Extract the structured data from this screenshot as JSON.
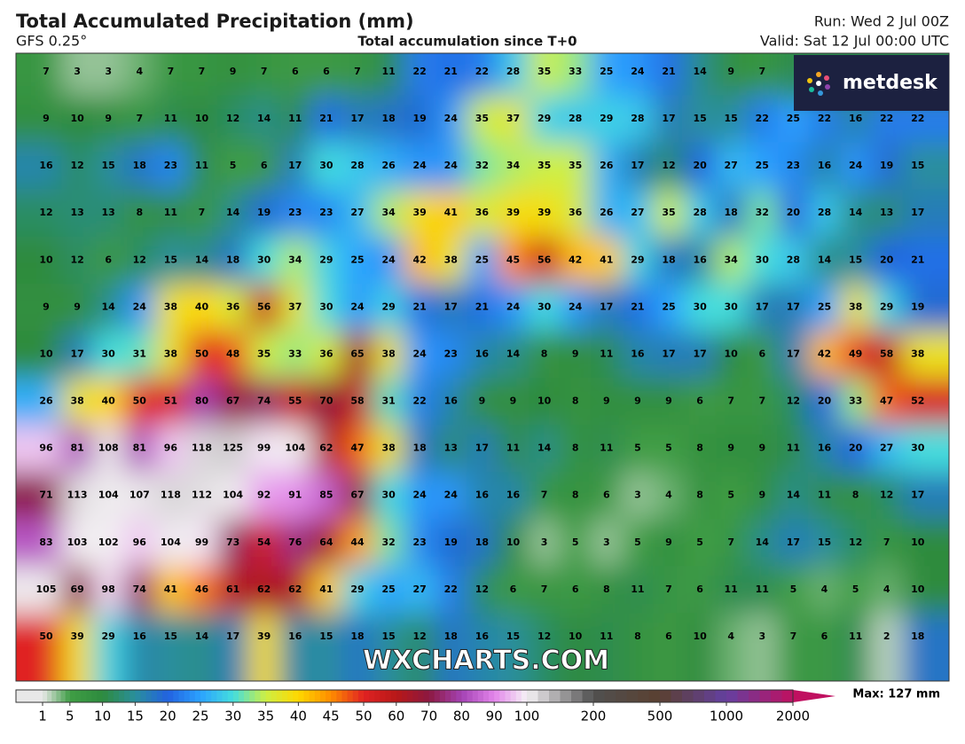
{
  "header": {
    "title": "Total Accumulated Precipitation (mm)",
    "model": "GFS 0.25°",
    "subtitle": "Total accumulation since T+0",
    "run": "Run: Wed 2 Jul 00Z",
    "valid": "Valid: Sat 12 Jul 00:00 UTC"
  },
  "logo": "metdesk",
  "watermark": "WXCHARTS.COM",
  "map": {
    "grid": [
      [
        7,
        3,
        3,
        4,
        7,
        7,
        9,
        7,
        6,
        6,
        7,
        11,
        22,
        21,
        22,
        28,
        35,
        33,
        25,
        24,
        21,
        14,
        9,
        7,
        null,
        null,
        null,
        null,
        null
      ],
      [
        9,
        10,
        9,
        7,
        11,
        10,
        12,
        14,
        11,
        21,
        17,
        18,
        19,
        24,
        35,
        37,
        29,
        28,
        29,
        28,
        17,
        15,
        15,
        22,
        25,
        22,
        16,
        22,
        22
      ],
      [
        16,
        12,
        15,
        18,
        23,
        11,
        5,
        6,
        17,
        30,
        28,
        26,
        24,
        24,
        32,
        34,
        35,
        35,
        26,
        17,
        12,
        20,
        27,
        25,
        23,
        16,
        24,
        19,
        15
      ],
      [
        12,
        13,
        13,
        8,
        11,
        7,
        14,
        19,
        23,
        23,
        27,
        34,
        39,
        41,
        36,
        39,
        39,
        36,
        26,
        27,
        35,
        28,
        18,
        32,
        20,
        28,
        14,
        13,
        17
      ],
      [
        10,
        12,
        6,
        12,
        15,
        14,
        18,
        30,
        34,
        29,
        25,
        24,
        42,
        38,
        25,
        45,
        56,
        42,
        41,
        29,
        18,
        16,
        34,
        30,
        28,
        14,
        15,
        20,
        21
      ],
      [
        9,
        9,
        14,
        24,
        38,
        40,
        36,
        56,
        37,
        30,
        24,
        29,
        21,
        17,
        21,
        24,
        30,
        24,
        17,
        21,
        25,
        30,
        30,
        17,
        17,
        25,
        38,
        29,
        19
      ],
      [
        10,
        17,
        30,
        31,
        38,
        50,
        48,
        35,
        33,
        36,
        65,
        38,
        24,
        23,
        16,
        14,
        8,
        9,
        11,
        16,
        17,
        17,
        10,
        6,
        17,
        42,
        49,
        58,
        38
      ],
      [
        26,
        38,
        40,
        50,
        51,
        80,
        67,
        74,
        55,
        70,
        58,
        31,
        22,
        16,
        9,
        9,
        10,
        8,
        9,
        9,
        9,
        6,
        7,
        7,
        12,
        20,
        33,
        47,
        52
      ],
      [
        96,
        81,
        108,
        81,
        96,
        118,
        125,
        99,
        104,
        62,
        47,
        38,
        18,
        13,
        17,
        11,
        14,
        8,
        11,
        5,
        5,
        8,
        9,
        9,
        11,
        16,
        20,
        27,
        30
      ],
      [
        71,
        113,
        104,
        107,
        118,
        112,
        104,
        92,
        91,
        85,
        67,
        30,
        24,
        24,
        16,
        16,
        7,
        8,
        6,
        3,
        4,
        8,
        5,
        9,
        14,
        11,
        8,
        12,
        17
      ],
      [
        83,
        103,
        102,
        96,
        104,
        99,
        73,
        54,
        76,
        64,
        44,
        32,
        23,
        19,
        18,
        10,
        3,
        5,
        3,
        5,
        9,
        5,
        7,
        14,
        17,
        15,
        12,
        7,
        10
      ],
      [
        105,
        69,
        98,
        74,
        41,
        46,
        61,
        62,
        62,
        41,
        29,
        25,
        27,
        22,
        12,
        6,
        7,
        6,
        8,
        11,
        7,
        6,
        11,
        11,
        5,
        4,
        5,
        4,
        10
      ],
      [
        50,
        39,
        29,
        16,
        15,
        14,
        17,
        39,
        16,
        15,
        18,
        15,
        12,
        18,
        16,
        15,
        12,
        10,
        11,
        8,
        6,
        10,
        4,
        3,
        7,
        6,
        11,
        2,
        18
      ]
    ]
  },
  "colorbar": {
    "ticks": [
      1,
      5,
      10,
      15,
      20,
      25,
      30,
      35,
      40,
      45,
      50,
      60,
      70,
      80,
      90,
      100,
      200,
      500,
      1000,
      2000
    ],
    "colors": [
      "#e8e8e8",
      "#3f9d45",
      "#2e8b3e",
      "#2a8f9c",
      "#2262e0",
      "#2ba2ff",
      "#44dede",
      "#cdef44",
      "#ffd800",
      "#ff8c00",
      "#e02222",
      "#b81818",
      "#8c1840",
      "#a442b4",
      "#e284ea",
      "#f6f2f6",
      "#505050",
      "#5a4030",
      "#6440a0",
      "#c01060"
    ],
    "max_label": "Max: 127 mm"
  }
}
